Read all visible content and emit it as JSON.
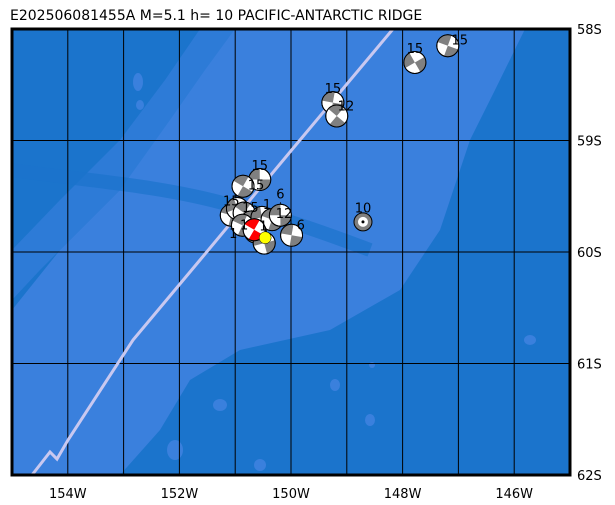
{
  "title": "E202506081455A M=5.1 h= 10 PACIFIC-ANTARCTIC RIDGE",
  "extent": {
    "lon": [
      -155,
      -145
    ],
    "lat": [
      -62,
      -58
    ]
  },
  "lon_ticks": [
    {
      "v": -154,
      "label": "154W"
    },
    {
      "v": -152,
      "label": "152W"
    },
    {
      "v": -150,
      "label": "150W"
    },
    {
      "v": -148,
      "label": "148W"
    },
    {
      "v": -146,
      "label": "146W"
    }
  ],
  "lat_ticks": [
    {
      "v": -58,
      "label": "58S"
    },
    {
      "v": -59,
      "label": "59S"
    },
    {
      "v": -60,
      "label": "60S"
    },
    {
      "v": -61,
      "label": "61S"
    },
    {
      "v": -62,
      "label": "62S"
    }
  ],
  "colors": {
    "deep": "#1b74cc",
    "shallow": "#3a80dd",
    "ridge": "#c8c8f0",
    "mech_fill": "#808080",
    "main_fill": "#ff0000",
    "epicenter": "#ffff00"
  },
  "main_event": {
    "lon": -150.66,
    "lat": -59.8
  },
  "events": [
    {
      "lon": -147.19,
      "lat": -58.15,
      "depth": "15",
      "rot": 20
    },
    {
      "lon": -147.78,
      "lat": -58.3,
      "depth": "15",
      "rot": -30
    },
    {
      "lon": -149.25,
      "lat": -58.66,
      "depth": "15",
      "rot": 10
    },
    {
      "lon": -149.18,
      "lat": -58.78,
      "depth": "12",
      "rot": 40
    },
    {
      "lon": -150.56,
      "lat": -59.35,
      "depth": "15",
      "rot": 0
    },
    {
      "lon": -150.86,
      "lat": -59.41,
      "depth": "15",
      "rot": 30
    },
    {
      "lon": -148.71,
      "lat": -59.73,
      "depth": "10",
      "rot": 0,
      "small": true
    },
    {
      "lon": -151.07,
      "lat": -59.67,
      "depth": "15",
      "rot": 15
    },
    {
      "lon": -150.96,
      "lat": -59.61,
      "depth": "15",
      "rot": -20
    },
    {
      "lon": -150.84,
      "lat": -59.65,
      "depth": "1",
      "rot": 35
    },
    {
      "lon": -150.71,
      "lat": -59.73,
      "depth": "1",
      "rot": 5
    },
    {
      "lon": -150.87,
      "lat": -59.76,
      "depth": "1",
      "rot": 25
    },
    {
      "lon": -150.52,
      "lat": -59.69,
      "depth": "1",
      "rot": -10
    },
    {
      "lon": -150.34,
      "lat": -59.71,
      "depth": "12",
      "rot": 20
    },
    {
      "lon": -150.19,
      "lat": -59.67,
      "depth": "6",
      "rot": 0
    },
    {
      "lon": -150.64,
      "lat": -59.82,
      "depth": "",
      "rot": 45
    },
    {
      "lon": -149.99,
      "lat": -59.85,
      "depth": "6",
      "rot": 10
    },
    {
      "lon": -150.48,
      "lat": -59.92,
      "depth": "",
      "rot": -15
    }
  ]
}
